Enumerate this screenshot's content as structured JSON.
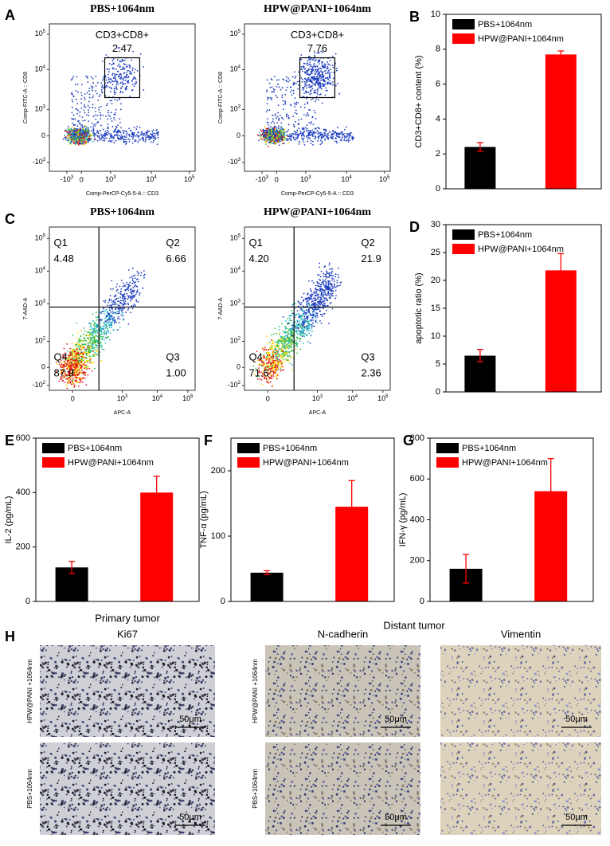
{
  "flow_plots": [
    {
      "panel": "A",
      "title": "PBS+1064nm",
      "gate_label": "CD3+CD8+",
      "gate_value": "2.47",
      "ylabel": "Comp-FITC-A :: CD8",
      "xlabel": "Comp-PerCP-Cy5-5-A :: CD3",
      "yticks": [
        {
          "base": "10",
          "exp": "5"
        },
        {
          "base": "10",
          "exp": "4"
        },
        {
          "base": "10",
          "exp": "3"
        },
        "0",
        {
          "base": "-10",
          "exp": "3"
        }
      ],
      "xticks": [
        {
          "base": "-10",
          "exp": "3"
        },
        "0",
        {
          "base": "10",
          "exp": "3"
        },
        {
          "base": "10",
          "exp": "4"
        },
        {
          "base": "10",
          "exp": "5"
        }
      ]
    },
    {
      "title": "HPW@PANI+1064nm",
      "gate_label": "CD3+CD8+",
      "gate_value": "7.76",
      "ylabel": "Comp-FITC-A :: CD8",
      "xlabel": "Comp-PerCP-Cy5-5-A :: CD3",
      "yticks": [
        {
          "base": "10",
          "exp": "5"
        },
        {
          "base": "10",
          "exp": "4"
        },
        {
          "base": "10",
          "exp": "3"
        },
        "0",
        {
          "base": "-10",
          "exp": "3"
        }
      ],
      "xticks": [
        {
          "base": "-10",
          "exp": "3"
        },
        "0",
        {
          "base": "10",
          "exp": "3"
        },
        {
          "base": "10",
          "exp": "4"
        },
        {
          "base": "10",
          "exp": "5"
        }
      ]
    },
    {
      "panel": "C",
      "title": "PBS+1064nm",
      "ylabel": "7-AAD-A",
      "xlabel": "APC-A",
      "quadrants": [
        {
          "name": "Q1",
          "value": "4.48"
        },
        {
          "name": "Q2",
          "value": "6.66"
        },
        {
          "name": "Q3",
          "value": "1.00"
        },
        {
          "name": "Q4",
          "value": "87.9"
        }
      ],
      "yticks": [
        {
          "base": "10",
          "exp": "5"
        },
        {
          "base": "10",
          "exp": "4"
        },
        {
          "base": "10",
          "exp": "3"
        },
        {
          "base": "10",
          "exp": "2"
        },
        "0",
        {
          "base": "-10",
          "exp": "2"
        }
      ],
      "xticks": [
        "0",
        {
          "base": "10",
          "exp": "3"
        },
        {
          "base": "10",
          "exp": "4"
        },
        {
          "base": "10",
          "exp": "5"
        }
      ]
    },
    {
      "title": "HPW@PANI+1064nm",
      "ylabel": "7-AAD-A",
      "xlabel": "APC-A",
      "quadrants": [
        {
          "name": "Q1",
          "value": "4.20"
        },
        {
          "name": "Q2",
          "value": "21.9"
        },
        {
          "name": "Q3",
          "value": "2.36"
        },
        {
          "name": "Q4",
          "value": "71.6"
        }
      ],
      "yticks": [
        {
          "base": "10",
          "exp": "5"
        },
        {
          "base": "10",
          "exp": "4"
        },
        {
          "base": "10",
          "exp": "3"
        },
        {
          "base": "10",
          "exp": "2"
        },
        "0",
        {
          "base": "-10",
          "exp": "2"
        }
      ],
      "xticks": [
        "0",
        {
          "base": "10",
          "exp": "3"
        },
        {
          "base": "10",
          "exp": "4"
        },
        {
          "base": "10",
          "exp": "5"
        }
      ]
    }
  ],
  "chart_data": [
    {
      "type": "bar",
      "panel": "B",
      "ylabel": "CD3+CD8+ content (%)",
      "ylim": [
        0,
        10
      ],
      "yticks": [
        0,
        2,
        4,
        6,
        8,
        10
      ],
      "series": [
        {
          "name": "PBS+1064nm",
          "color": "#000000",
          "values": [
            2.4
          ],
          "errors": [
            0.25
          ]
        },
        {
          "name": "HPW@PANI+1064nm",
          "color": "#ff0000",
          "values": [
            7.7
          ],
          "errors": [
            0.2
          ]
        }
      ]
    },
    {
      "type": "bar",
      "panel": "D",
      "ylabel": "apoptotic ratio (%)",
      "ylim": [
        0,
        30
      ],
      "yticks": [
        0,
        5,
        10,
        15,
        20,
        25,
        30
      ],
      "series": [
        {
          "name": "PBS+1064nm",
          "color": "#000000",
          "values": [
            6.5
          ],
          "errors": [
            1.1
          ]
        },
        {
          "name": "HPW@PANI+1064nm",
          "color": "#ff0000",
          "values": [
            21.8
          ],
          "errors": [
            3
          ]
        }
      ]
    },
    {
      "type": "bar",
      "panel": "E",
      "ylabel": "IL-2 (pg/mL)",
      "ylim": [
        0,
        600
      ],
      "yticks": [
        0,
        200,
        400,
        600
      ],
      "series": [
        {
          "name": "PBS+1064nm",
          "color": "#000000",
          "values": [
            125
          ],
          "errors": [
            22
          ]
        },
        {
          "name": "HPW@PANI+1064nm",
          "color": "#ff0000",
          "values": [
            400
          ],
          "errors": [
            60
          ]
        }
      ]
    },
    {
      "type": "bar",
      "panel": "F",
      "ylabel": "TNF-α (pg/mL)",
      "ylim": [
        0,
        250
      ],
      "yticks": [
        0,
        100,
        200
      ],
      "series": [
        {
          "name": "PBS+1064nm",
          "color": "#000000",
          "values": [
            44
          ],
          "errors": [
            3
          ]
        },
        {
          "name": "HPW@PANI+1064nm",
          "color": "#ff0000",
          "values": [
            145
          ],
          "errors": [
            40
          ]
        }
      ]
    },
    {
      "type": "bar",
      "panel": "G",
      "ylabel": "IFN-γ (pg/mL)",
      "ylim": [
        0,
        800
      ],
      "yticks": [
        0,
        200,
        400,
        600,
        800
      ],
      "series": [
        {
          "name": "PBS+1064nm",
          "color": "#000000",
          "values": [
            160
          ],
          "errors": [
            70
          ]
        },
        {
          "name": "HPW@PANI+1064nm",
          "color": "#ff0000",
          "values": [
            540
          ],
          "errors": [
            160
          ]
        }
      ]
    }
  ],
  "histology": {
    "panel": "H",
    "groups": [
      {
        "label": "Primary tumor",
        "columns": [
          {
            "stain": "Ki67"
          }
        ]
      },
      {
        "label": "Distant tumor",
        "columns": [
          {
            "stain": "N-cadherin"
          },
          {
            "stain": "Vimentin"
          }
        ]
      }
    ],
    "rows": [
      "HPW@PANI +1064nm",
      "PBS+1064nm"
    ],
    "scale_bar": "50μm"
  }
}
